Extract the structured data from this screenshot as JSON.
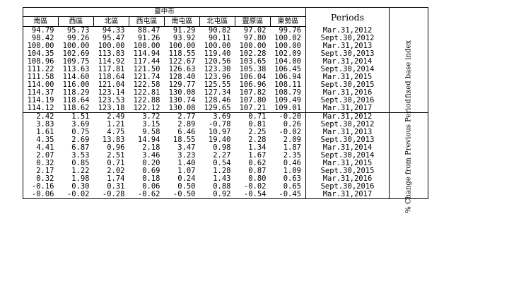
{
  "city_label": "臺中市",
  "periods_label": "Periods",
  "districts": [
    "南區",
    "西區",
    "北區",
    "西屯區",
    "南屯區",
    "北屯區",
    "豐原區",
    "東勢區"
  ],
  "section_fixed_label": "fixed base index",
  "section_change_label": "% Change from Previous Period",
  "fixed_rows": [
    {
      "values": [
        "94.79",
        "95.73",
        "94.33",
        "88.47",
        "91.29",
        "90.82",
        "97.02",
        "99.76"
      ],
      "period": "Mar.31,2012"
    },
    {
      "values": [
        "98.42",
        "99.26",
        "95.47",
        "91.26",
        "93.92",
        "90.11",
        "97.80",
        "100.02"
      ],
      "period": "Sept.30,2012"
    },
    {
      "values": [
        "100.00",
        "100.00",
        "100.00",
        "100.00",
        "100.00",
        "100.00",
        "100.00",
        "100.00"
      ],
      "period": "Mar.31,2013"
    },
    {
      "values": [
        "104.35",
        "102.69",
        "113.83",
        "114.94",
        "118.55",
        "119.40",
        "102.28",
        "102.09"
      ],
      "period": "Sept.30,2013"
    },
    {
      "values": [
        "108.96",
        "109.75",
        "114.92",
        "117.44",
        "122.67",
        "120.56",
        "103.65",
        "104.00"
      ],
      "period": "Mar.31,2014"
    },
    {
      "values": [
        "111.22",
        "113.63",
        "117.81",
        "121.50",
        "126.63",
        "123.30",
        "105.38",
        "106.45"
      ],
      "period": "Sept.30,2014"
    },
    {
      "values": [
        "111.58",
        "114.60",
        "118.64",
        "121.74",
        "128.40",
        "123.96",
        "106.04",
        "106.94"
      ],
      "period": "Mar.31,2015"
    },
    {
      "values": [
        "114.00",
        "116.00",
        "121.04",
        "122.58",
        "129.77",
        "125.55",
        "106.96",
        "108.11"
      ],
      "period": "Sept.30,2015"
    },
    {
      "values": [
        "114.37",
        "118.29",
        "123.14",
        "122.81",
        "130.08",
        "127.34",
        "107.82",
        "108.79"
      ],
      "period": "Mar.31,2016"
    },
    {
      "values": [
        "114.19",
        "118.64",
        "123.53",
        "122.88",
        "130.74",
        "128.46",
        "107.80",
        "109.49"
      ],
      "period": "Sept.30,2016"
    },
    {
      "values": [
        "114.12",
        "118.62",
        "123.18",
        "122.12",
        "130.08",
        "129.65",
        "107.21",
        "109.01"
      ],
      "period": "Mar.31,2017"
    }
  ],
  "change_rows": [
    {
      "values": [
        "2.42",
        "1.51",
        "2.49",
        "3.72",
        "2.77",
        "3.69",
        "0.71",
        "-0.20"
      ],
      "period": "Mar.31,2012"
    },
    {
      "values": [
        "3.83",
        "3.69",
        "1.21",
        "3.15",
        "2.89",
        "-0.78",
        "0.81",
        "0.26"
      ],
      "period": "Sept.30,2012"
    },
    {
      "values": [
        "1.61",
        "0.75",
        "4.75",
        "9.58",
        "6.46",
        "10.97",
        "2.25",
        "-0.02"
      ],
      "period": "Mar.31,2013"
    },
    {
      "values": [
        "4.35",
        "2.69",
        "13.83",
        "14.94",
        "18.55",
        "19.40",
        "2.28",
        "2.09"
      ],
      "period": "Sept.30,2013"
    },
    {
      "values": [
        "4.41",
        "6.87",
        "0.96",
        "2.18",
        "3.47",
        "0.98",
        "1.34",
        "1.87"
      ],
      "period": "Mar.31,2014"
    },
    {
      "values": [
        "2.07",
        "3.53",
        "2.51",
        "3.46",
        "3.23",
        "2.27",
        "1.67",
        "2.35"
      ],
      "period": "Sept.30,2014"
    },
    {
      "values": [
        "0.32",
        "0.85",
        "0.71",
        "0.20",
        "1.40",
        "0.54",
        "0.62",
        "0.46"
      ],
      "period": "Mar.31,2015"
    },
    {
      "values": [
        "2.17",
        "1.22",
        "2.02",
        "0.69",
        "1.07",
        "1.28",
        "0.87",
        "1.09"
      ],
      "period": "Sept.30,2015"
    },
    {
      "values": [
        "0.32",
        "1.98",
        "1.74",
        "0.18",
        "0.24",
        "1.43",
        "0.80",
        "0.63"
      ],
      "period": "Mar.31,2016"
    },
    {
      "values": [
        "-0.16",
        "0.30",
        "0.31",
        "0.06",
        "0.50",
        "0.88",
        "-0.02",
        "0.65"
      ],
      "period": "Sept.30,2016"
    },
    {
      "values": [
        "-0.06",
        "-0.02",
        "-0.28",
        "-0.62",
        "-0.50",
        "0.92",
        "-0.54",
        "-0.45"
      ],
      "period": "Mar.31,2017"
    }
  ]
}
